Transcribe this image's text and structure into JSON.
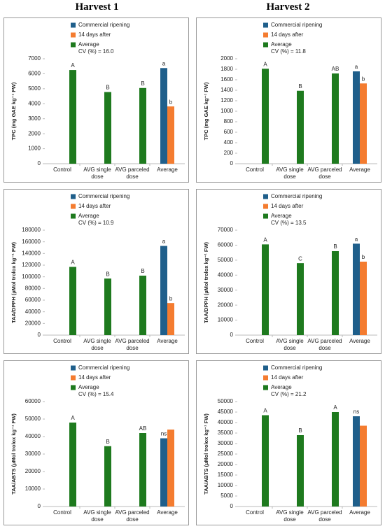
{
  "headers": [
    "Harvest 1",
    "Harvest 2"
  ],
  "chart_data": [
    {
      "type": "bar",
      "ylabel": "TPC (mg GAE kg⁻¹ FW)",
      "annotation": "CV (%) = 16.0",
      "categories": [
        "Control",
        "AVG single dose",
        "AVG parceled dose",
        "Average"
      ],
      "series": [
        {
          "name": "Commercial ripening",
          "color": "#1f5f8b",
          "values": [
            null,
            null,
            null,
            6380
          ],
          "annotations": [
            null,
            null,
            null,
            "a"
          ]
        },
        {
          "name": "14 days after",
          "color": "#f47c30",
          "values": [
            null,
            null,
            null,
            3820
          ],
          "annotations": [
            null,
            null,
            null,
            "b"
          ]
        },
        {
          "name": "Average",
          "color": "#1e7a1e",
          "values": [
            6250,
            4780,
            5050,
            null
          ],
          "annotations": [
            "A",
            "B",
            "B",
            null
          ]
        }
      ],
      "ylim": [
        0,
        7000
      ],
      "yticks": [
        0,
        1000,
        2000,
        3000,
        4000,
        5000,
        6000,
        7000
      ]
    },
    {
      "type": "bar",
      "ylabel": "TPC (mg GAE kg⁻¹ FW)",
      "annotation": "CV (%) = 11.8",
      "categories": [
        "Control",
        "AVG single dose",
        "AVG parceled dose",
        "Average"
      ],
      "series": [
        {
          "name": "Commercial ripening",
          "color": "#1f5f8b",
          "values": [
            null,
            null,
            null,
            1760
          ],
          "annotations": [
            null,
            null,
            null,
            "a"
          ]
        },
        {
          "name": "14 days after",
          "color": "#f47c30",
          "values": [
            null,
            null,
            null,
            1530
          ],
          "annotations": [
            null,
            null,
            null,
            "b"
          ]
        },
        {
          "name": "Average",
          "color": "#1e7a1e",
          "values": [
            1810,
            1390,
            1720,
            null
          ],
          "annotations": [
            "A",
            "B",
            "AB",
            null
          ]
        }
      ],
      "ylim": [
        0,
        2000
      ],
      "yticks": [
        0,
        200,
        400,
        600,
        800,
        1000,
        1200,
        1400,
        1600,
        1800,
        2000
      ]
    },
    {
      "type": "bar",
      "ylabel": "TAA/DPPH (µMol trolox kg⁻¹ FW)",
      "annotation": "CV (%) = 10.9",
      "categories": [
        "Control",
        "AVG single dose",
        "AVG parceled dose",
        "Average"
      ],
      "series": [
        {
          "name": "Commercial ripening",
          "color": "#1f5f8b",
          "values": [
            null,
            null,
            null,
            153000
          ],
          "annotations": [
            null,
            null,
            null,
            "a"
          ]
        },
        {
          "name": "14 days after",
          "color": "#f47c30",
          "values": [
            null,
            null,
            null,
            55000
          ],
          "annotations": [
            null,
            null,
            null,
            "b"
          ]
        },
        {
          "name": "Average",
          "color": "#1e7a1e",
          "values": [
            117000,
            97000,
            102000,
            null
          ],
          "annotations": [
            "A",
            "B",
            "B",
            null
          ]
        }
      ],
      "ylim": [
        0,
        180000
      ],
      "yticks": [
        0,
        20000,
        40000,
        60000,
        80000,
        100000,
        120000,
        140000,
        160000,
        180000
      ]
    },
    {
      "type": "bar",
      "ylabel": "TAA/DPPH (µMol trolox kg⁻¹ FW)",
      "annotation": "CV (%) = 13.5",
      "categories": [
        "Control",
        "AVG single dose",
        "AVG parceled dose",
        "Average"
      ],
      "series": [
        {
          "name": "Commercial ripening",
          "color": "#1f5f8b",
          "values": [
            null,
            null,
            null,
            61000
          ],
          "annotations": [
            null,
            null,
            null,
            "a"
          ]
        },
        {
          "name": "14 days after",
          "color": "#f47c30",
          "values": [
            null,
            null,
            null,
            49000
          ],
          "annotations": [
            null,
            null,
            null,
            "b"
          ]
        },
        {
          "name": "Average",
          "color": "#1e7a1e",
          "values": [
            60500,
            48000,
            56000,
            null
          ],
          "annotations": [
            "A",
            "C",
            "B",
            null
          ]
        }
      ],
      "ylim": [
        0,
        70000
      ],
      "yticks": [
        0,
        10000,
        20000,
        30000,
        40000,
        50000,
        60000,
        70000
      ]
    },
    {
      "type": "bar",
      "ylabel": "TAA/ABTS (µMol trolox kg⁻¹ FW)",
      "annotation": "CV (%) = 15.4",
      "categories": [
        "Control",
        "AVG single dose",
        "AVG parceled dose",
        "Average"
      ],
      "series": [
        {
          "name": "Commercial ripening",
          "color": "#1f5f8b",
          "values": [
            null,
            null,
            null,
            39000
          ],
          "annotations": [
            null,
            null,
            null,
            "ns"
          ]
        },
        {
          "name": "14 days after",
          "color": "#f47c30",
          "values": [
            null,
            null,
            null,
            44000
          ],
          "annotations": [
            null,
            null,
            null,
            null
          ]
        },
        {
          "name": "Average",
          "color": "#1e7a1e",
          "values": [
            48000,
            34500,
            42000,
            null
          ],
          "annotations": [
            "A",
            "B",
            "AB",
            null
          ]
        }
      ],
      "ylim": [
        0,
        60000
      ],
      "yticks": [
        0,
        10000,
        20000,
        30000,
        40000,
        50000,
        60000
      ]
    },
    {
      "type": "bar",
      "ylabel": "TAA/ABTS (µMol trolox kg⁻¹ FW)",
      "annotation": "CV (%) = 21.2",
      "categories": [
        "Control",
        "AVG single dose",
        "AVG parceled dose",
        "Average"
      ],
      "series": [
        {
          "name": "Commercial ripening",
          "color": "#1f5f8b",
          "values": [
            null,
            null,
            null,
            43000
          ],
          "annotations": [
            null,
            null,
            null,
            "ns"
          ]
        },
        {
          "name": "14 days after",
          "color": "#f47c30",
          "values": [
            null,
            null,
            null,
            38500
          ],
          "annotations": [
            null,
            null,
            null,
            null
          ]
        },
        {
          "name": "Average",
          "color": "#1e7a1e",
          "values": [
            43500,
            34000,
            45000,
            null
          ],
          "annotations": [
            "A",
            "B",
            "A",
            null
          ]
        }
      ],
      "ylim": [
        0,
        50000
      ],
      "yticks": [
        0,
        5000,
        10000,
        15000,
        20000,
        25000,
        30000,
        35000,
        40000,
        45000,
        50000
      ]
    }
  ]
}
